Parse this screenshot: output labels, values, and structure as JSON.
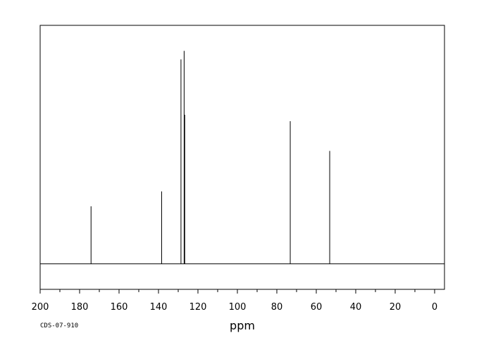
{
  "chart_data": {
    "type": "line",
    "title": "",
    "xlabel": "ppm",
    "ylabel": "",
    "x_reversed": true,
    "xlim": [
      200,
      -5
    ],
    "ylim": [
      -0.12,
      1.12
    ],
    "grid": false,
    "legend": "none",
    "line_color": "#000000",
    "tick_labels": [
      "200",
      "180",
      "160",
      "140",
      "120",
      "100",
      "80",
      "60",
      "40",
      "20",
      "0"
    ],
    "tick_values": [
      200,
      180,
      160,
      140,
      120,
      100,
      80,
      60,
      40,
      20,
      0
    ],
    "minor_tick_step": 10,
    "baseline": 0,
    "peaks": [
      {
        "ppm": 174.2,
        "intensity": 0.27
      },
      {
        "ppm": 138.4,
        "intensity": 0.34
      },
      {
        "ppm": 128.6,
        "intensity": 0.96
      },
      {
        "ppm": 127.0,
        "intensity": 1.0
      },
      {
        "ppm": 126.7,
        "intensity": 0.7
      },
      {
        "ppm": 73.2,
        "intensity": 0.67
      },
      {
        "ppm": 53.2,
        "intensity": 0.53
      }
    ]
  },
  "footer": {
    "code": "CDS-07-910"
  }
}
